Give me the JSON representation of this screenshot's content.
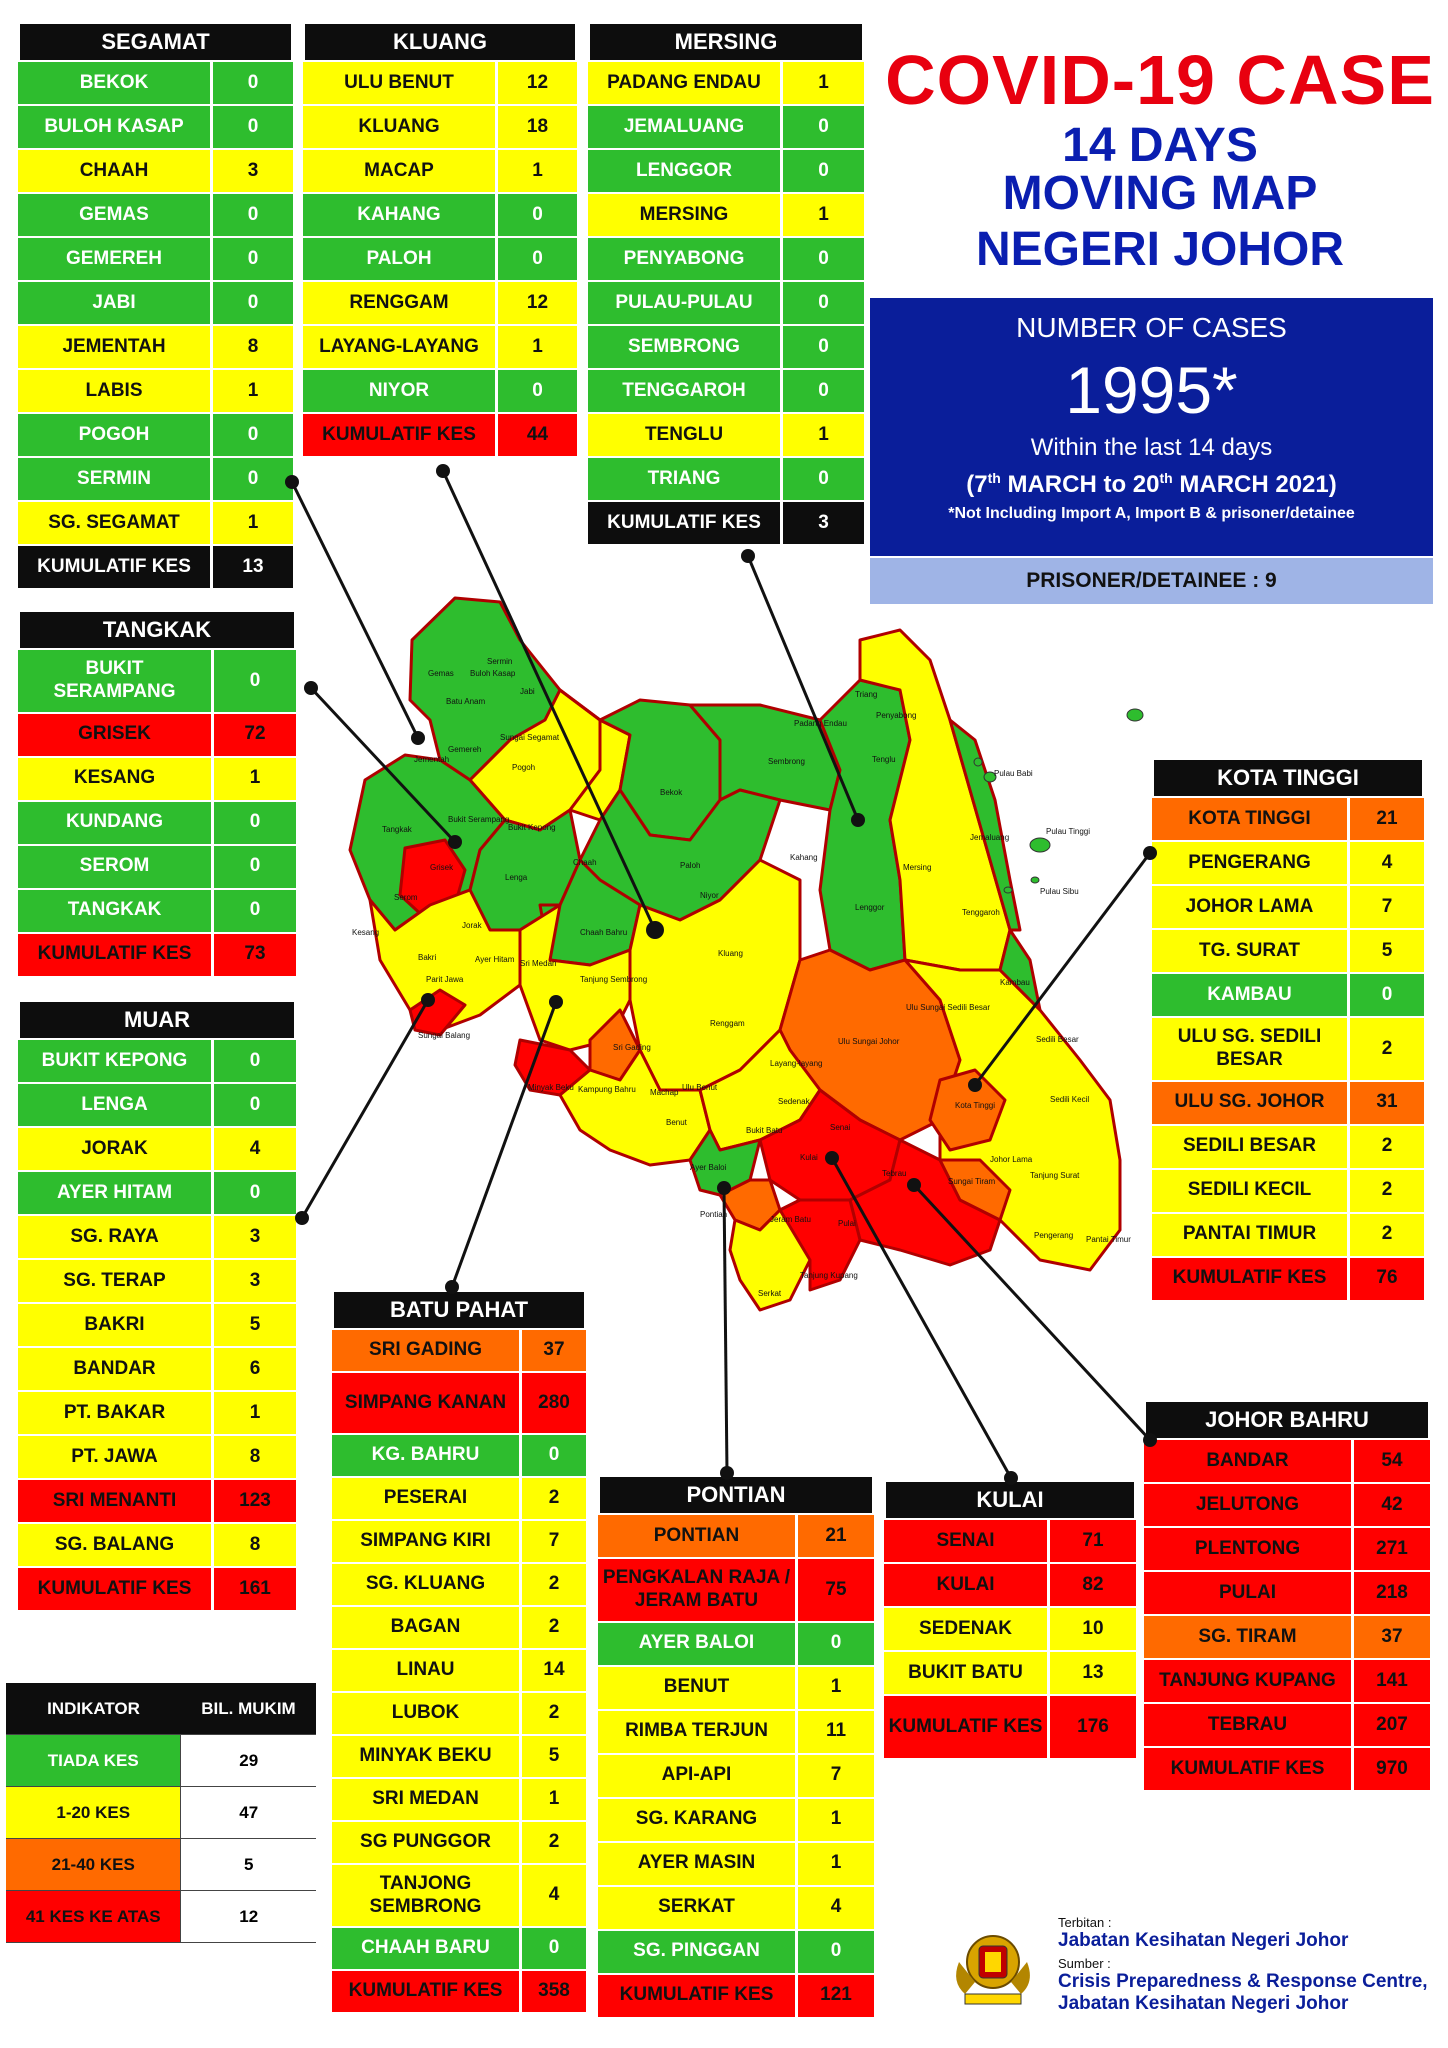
{
  "title": {
    "line1": "COVID-19 CASE",
    "line2": "14 DAYS",
    "line3": "MOVING MAP",
    "line4": "NEGERI JOHOR"
  },
  "summary": {
    "label": "NUMBER OF CASES",
    "value": "1995*",
    "within": "Within the last 14 days",
    "period_prefix": "(7",
    "period_sup1": "th",
    "period_mid": " MARCH to 20",
    "period_sup2": "th",
    "period_suffix": " MARCH 2021)",
    "note": "*Not Including Import A, Import B & prisoner/detainee",
    "prisoner": "PRISONER/DETAINEE : 9"
  },
  "colors": {
    "green": "#2ebd2e",
    "yellow": "#ffff00",
    "orange": "#ff6a00",
    "red": "#ff0000",
    "black": "#0d0d0d",
    "title_red": "#e8000f",
    "title_blue": "#0a1eb0",
    "box_blue": "#0a1e9a",
    "prisoner_bg": "#9fb4e6"
  },
  "districts": {
    "segamat": {
      "name": "SEGAMAT",
      "rows": [
        {
          "name": "BEKOK",
          "value": "0",
          "level": "g"
        },
        {
          "name": "BULOH KASAP",
          "value": "0",
          "level": "g"
        },
        {
          "name": "CHAAH",
          "value": "3",
          "level": "y"
        },
        {
          "name": "GEMAS",
          "value": "0",
          "level": "g"
        },
        {
          "name": "GEMEREH",
          "value": "0",
          "level": "g"
        },
        {
          "name": "JABI",
          "value": "0",
          "level": "g"
        },
        {
          "name": "JEMENTAH",
          "value": "8",
          "level": "y"
        },
        {
          "name": "LABIS",
          "value": "1",
          "level": "y"
        },
        {
          "name": "POGOH",
          "value": "0",
          "level": "g"
        },
        {
          "name": "SERMIN",
          "value": "0",
          "level": "g"
        },
        {
          "name": "SG. SEGAMAT",
          "value": "1",
          "level": "y"
        },
        {
          "name": "KUMULATIF KES",
          "value": "13",
          "level": "k"
        }
      ]
    },
    "kluang": {
      "name": "KLUANG",
      "rows": [
        {
          "name": "ULU BENUT",
          "value": "12",
          "level": "y"
        },
        {
          "name": "KLUANG",
          "value": "18",
          "level": "y"
        },
        {
          "name": "MACAP",
          "value": "1",
          "level": "y"
        },
        {
          "name": "KAHANG",
          "value": "0",
          "level": "g"
        },
        {
          "name": "PALOH",
          "value": "0",
          "level": "g"
        },
        {
          "name": "RENGGAM",
          "value": "12",
          "level": "y"
        },
        {
          "name": "LAYANG-LAYANG",
          "value": "1",
          "level": "y"
        },
        {
          "name": "NIYOR",
          "value": "0",
          "level": "g"
        },
        {
          "name": "KUMULATIF KES",
          "value": "44",
          "level": "r"
        }
      ]
    },
    "mersing": {
      "name": "MERSING",
      "rows": [
        {
          "name": "PADANG ENDAU",
          "value": "1",
          "level": "y"
        },
        {
          "name": "JEMALUANG",
          "value": "0",
          "level": "g"
        },
        {
          "name": "LENGGOR",
          "value": "0",
          "level": "g"
        },
        {
          "name": "MERSING",
          "value": "1",
          "level": "y"
        },
        {
          "name": "PENYABONG",
          "value": "0",
          "level": "g"
        },
        {
          "name": "PULAU-PULAU",
          "value": "0",
          "level": "g"
        },
        {
          "name": "SEMBRONG",
          "value": "0",
          "level": "g"
        },
        {
          "name": "TENGGAROH",
          "value": "0",
          "level": "g"
        },
        {
          "name": "TENGLU",
          "value": "1",
          "level": "y"
        },
        {
          "name": "TRIANG",
          "value": "0",
          "level": "g"
        },
        {
          "name": "KUMULATIF KES",
          "value": "3",
          "level": "k"
        }
      ]
    },
    "tangkak": {
      "name": "TANGKAK",
      "rows": [
        {
          "name": "BUKIT SERAMPANG",
          "value": "0",
          "level": "g",
          "tall": true
        },
        {
          "name": "GRISEK",
          "value": "72",
          "level": "r"
        },
        {
          "name": "KESANG",
          "value": "1",
          "level": "y"
        },
        {
          "name": "KUNDANG",
          "value": "0",
          "level": "g"
        },
        {
          "name": "SEROM",
          "value": "0",
          "level": "g"
        },
        {
          "name": "TANGKAK",
          "value": "0",
          "level": "g"
        },
        {
          "name": "KUMULATIF KES",
          "value": "73",
          "level": "r"
        }
      ]
    },
    "muar": {
      "name": "MUAR",
      "rows": [
        {
          "name": "BUKIT KEPONG",
          "value": "0",
          "level": "g"
        },
        {
          "name": "LENGA",
          "value": "0",
          "level": "g"
        },
        {
          "name": "JORAK",
          "value": "4",
          "level": "y"
        },
        {
          "name": "AYER HITAM",
          "value": "0",
          "level": "g"
        },
        {
          "name": "SG. RAYA",
          "value": "3",
          "level": "y"
        },
        {
          "name": "SG. TERAP",
          "value": "3",
          "level": "y"
        },
        {
          "name": "BAKRI",
          "value": "5",
          "level": "y"
        },
        {
          "name": "BANDAR",
          "value": "6",
          "level": "y"
        },
        {
          "name": "PT. BAKAR",
          "value": "1",
          "level": "y"
        },
        {
          "name": "PT. JAWA",
          "value": "8",
          "level": "y"
        },
        {
          "name": "SRI MENANTI",
          "value": "123",
          "level": "r"
        },
        {
          "name": "SG. BALANG",
          "value": "8",
          "level": "y"
        },
        {
          "name": "KUMULATIF KES",
          "value": "161",
          "level": "r"
        }
      ]
    },
    "batu_pahat": {
      "name": "BATU PAHAT",
      "rows": [
        {
          "name": "SRI GADING",
          "value": "37",
          "level": "o"
        },
        {
          "name": "SIMPANG KANAN",
          "value": "280",
          "level": "r",
          "tall": true
        },
        {
          "name": "KG. BAHRU",
          "value": "0",
          "level": "g"
        },
        {
          "name": "PESERAI",
          "value": "2",
          "level": "y"
        },
        {
          "name": "SIMPANG KIRI",
          "value": "7",
          "level": "y"
        },
        {
          "name": "SG. KLUANG",
          "value": "2",
          "level": "y"
        },
        {
          "name": "BAGAN",
          "value": "2",
          "level": "y"
        },
        {
          "name": "LINAU",
          "value": "14",
          "level": "y"
        },
        {
          "name": "LUBOK",
          "value": "2",
          "level": "y"
        },
        {
          "name": "MINYAK BEKU",
          "value": "5",
          "level": "y"
        },
        {
          "name": "SRI MEDAN",
          "value": "1",
          "level": "y"
        },
        {
          "name": "SG PUNGGOR",
          "value": "2",
          "level": "y"
        },
        {
          "name": "TANJONG SEMBRONG",
          "value": "4",
          "level": "y",
          "tall": true
        },
        {
          "name": "CHAAH BARU",
          "value": "0",
          "level": "g"
        },
        {
          "name": "KUMULATIF KES",
          "value": "358",
          "level": "r"
        }
      ]
    },
    "pontian": {
      "name": "PONTIAN",
      "rows": [
        {
          "name": "PONTIAN",
          "value": "21",
          "level": "o"
        },
        {
          "name": "PENGKALAN RAJA / JERAM BATU",
          "value": "75",
          "level": "r",
          "tall": true
        },
        {
          "name": "AYER BALOI",
          "value": "0",
          "level": "g"
        },
        {
          "name": "BENUT",
          "value": "1",
          "level": "y"
        },
        {
          "name": "RIMBA TERJUN",
          "value": "11",
          "level": "y"
        },
        {
          "name": "API-API",
          "value": "7",
          "level": "y"
        },
        {
          "name": "SG. KARANG",
          "value": "1",
          "level": "y"
        },
        {
          "name": "AYER MASIN",
          "value": "1",
          "level": "y"
        },
        {
          "name": "SERKAT",
          "value": "4",
          "level": "y"
        },
        {
          "name": "SG. PINGGAN",
          "value": "0",
          "level": "g"
        },
        {
          "name": "KUMULATIF KES",
          "value": "121",
          "level": "r"
        }
      ]
    },
    "kulai": {
      "name": "KULAI",
      "rows": [
        {
          "name": "SENAI",
          "value": "71",
          "level": "r"
        },
        {
          "name": "KULAI",
          "value": "82",
          "level": "r"
        },
        {
          "name": "SEDENAK",
          "value": "10",
          "level": "y"
        },
        {
          "name": "BUKIT BATU",
          "value": "13",
          "level": "y"
        },
        {
          "name": "KUMULATIF KES",
          "value": "176",
          "level": "r",
          "tall": true
        }
      ]
    },
    "kota_tinggi": {
      "name": "KOTA TINGGI",
      "rows": [
        {
          "name": "KOTA TINGGI",
          "value": "21",
          "level": "o"
        },
        {
          "name": "PENGERANG",
          "value": "4",
          "level": "y"
        },
        {
          "name": "JOHOR LAMA",
          "value": "7",
          "level": "y"
        },
        {
          "name": "TG. SURAT",
          "value": "5",
          "level": "y"
        },
        {
          "name": "KAMBAU",
          "value": "0",
          "level": "g"
        },
        {
          "name": "ULU SG. SEDILI BESAR",
          "value": "2",
          "level": "y",
          "tall": true
        },
        {
          "name": "ULU  SG. JOHOR",
          "value": "31",
          "level": "o"
        },
        {
          "name": "SEDILI BESAR",
          "value": "2",
          "level": "y"
        },
        {
          "name": "SEDILI KECIL",
          "value": "2",
          "level": "y"
        },
        {
          "name": "PANTAI TIMUR",
          "value": "2",
          "level": "y"
        },
        {
          "name": "KUMULATIF KES",
          "value": "76",
          "level": "r"
        }
      ]
    },
    "johor_bahru": {
      "name": "JOHOR BAHRU",
      "rows": [
        {
          "name": "BANDAR",
          "value": "54",
          "level": "r"
        },
        {
          "name": "JELUTONG",
          "value": "42",
          "level": "r"
        },
        {
          "name": "PLENTONG",
          "value": "271",
          "level": "r"
        },
        {
          "name": "PULAI",
          "value": "218",
          "level": "r"
        },
        {
          "name": "SG. TIRAM",
          "value": "37",
          "level": "o"
        },
        {
          "name": "TANJUNG KUPANG",
          "value": "141",
          "level": "r"
        },
        {
          "name": "TEBRAU",
          "value": "207",
          "level": "r"
        },
        {
          "name": "KUMULATIF KES",
          "value": "970",
          "level": "r"
        }
      ]
    }
  },
  "legend": {
    "header1": "INDIKATOR",
    "header2": "BIL. MUKIM",
    "rows": [
      {
        "label": "TIADA KES",
        "count": "29",
        "level": "g"
      },
      {
        "label": "1-20 KES",
        "count": "47",
        "level": "y"
      },
      {
        "label": "21-40 KES",
        "count": "5",
        "level": "o"
      },
      {
        "label": "41 KES KE ATAS",
        "count": "12",
        "level": "r"
      }
    ]
  },
  "footer": {
    "terbitan_label": "Terbitan :",
    "terbitan": "Jabatan Kesihatan Negeri Johor",
    "sumber_label": "Sumber :",
    "sumber1": "Crisis Preparedness & Response Centre,",
    "sumber2": "Jabatan Kesihatan Negeri Johor"
  },
  "map_labels": {
    "gemas": "Gemas",
    "sermin": "Sermin",
    "jabi": "Jabi",
    "buloh_kasap": "Buloh Kasap",
    "batu_anam": "Batu Anam",
    "sungai_segamat": "Sungai Segamat",
    "jementah": "Jementah",
    "gemereh": "Gemereh",
    "pogoh": "Pogoh",
    "bukit_serampang": "Bukit Serampang",
    "tangkak": "Tangkak",
    "grisek": "Grisek",
    "bukit_kepong": "Bukit Kepong",
    "lenga": "Lenga",
    "jorak": "Jorak",
    "serom": "Serom",
    "kesang": "Kesang",
    "bekok": "Bekok",
    "sembrong": "Sembrong",
    "chaah": "Chaah",
    "paloh": "Paloh",
    "kahang": "Kahang",
    "niyor": "Niyor",
    "kluang": "Kluang",
    "renggam": "Renggam",
    "chaah_bahru": "Chaah Bahru",
    "sri_medan": "Sri Medan",
    "tanjung_sembrong": "Tanjung Sembrong",
    "ayer_hitam": "Ayer Hitam",
    "bakri": "Bakri",
    "pt_jawa": "Parit Jawa",
    "sg_balang": "Sungai Balang",
    "sri_gading": "Sri Gading",
    "minyak_beku": "Minyak Beku",
    "kampung_bahru": "Kampung Bahru",
    "machap": "Machap",
    "ulu_benut": "Ulu Benut",
    "layang_layang": "Layang-layang",
    "benut": "Benut",
    "sedenak": "Sedenak",
    "bukit_batu": "Bukit Batu",
    "ayer_baloi": "Ayer Baloi",
    "pontian": "Pontian",
    "jeram_batu": "Jeram Batu",
    "serkat": "Serkat",
    "senai": "Senai",
    "kulai": "Kulai",
    "pulai": "Pulai",
    "tebrau": "Tebrau",
    "sungai_tiram": "Sungai Tiram",
    "tanjung_kupang": "Tanjung Kupang",
    "ulu_sungai_johor": "Ulu Sungai Johor",
    "kota_tinggi": "Kota Tinggi",
    "johor_lama": "Johor Lama",
    "tanjung_surat": "Tanjung Surat",
    "pengerang": "Pengerang",
    "pantai_timur": "Pantai Timur",
    "sedili_kecil": "Sedili Kecil",
    "sedili_besar": "Sedili Besar",
    "ulu_sungai_sedili": "Ulu Sungai Sedili Besar",
    "kambau": "Kambau",
    "jemaluang": "Jemaluang",
    "mersing": "Mersing",
    "lenggor": "Lenggor",
    "tenggaroh": "Tenggaroh",
    "padang_endau": "Padang Endau",
    "triang": "Triang",
    "penyabong": "Penyabong",
    "tenglu": "Tenglu",
    "pulau_babi": "Pulau Babi",
    "pulau_tinggi": "Pulau Tinggi",
    "pulau_sibu": "Pulau Sibu"
  }
}
